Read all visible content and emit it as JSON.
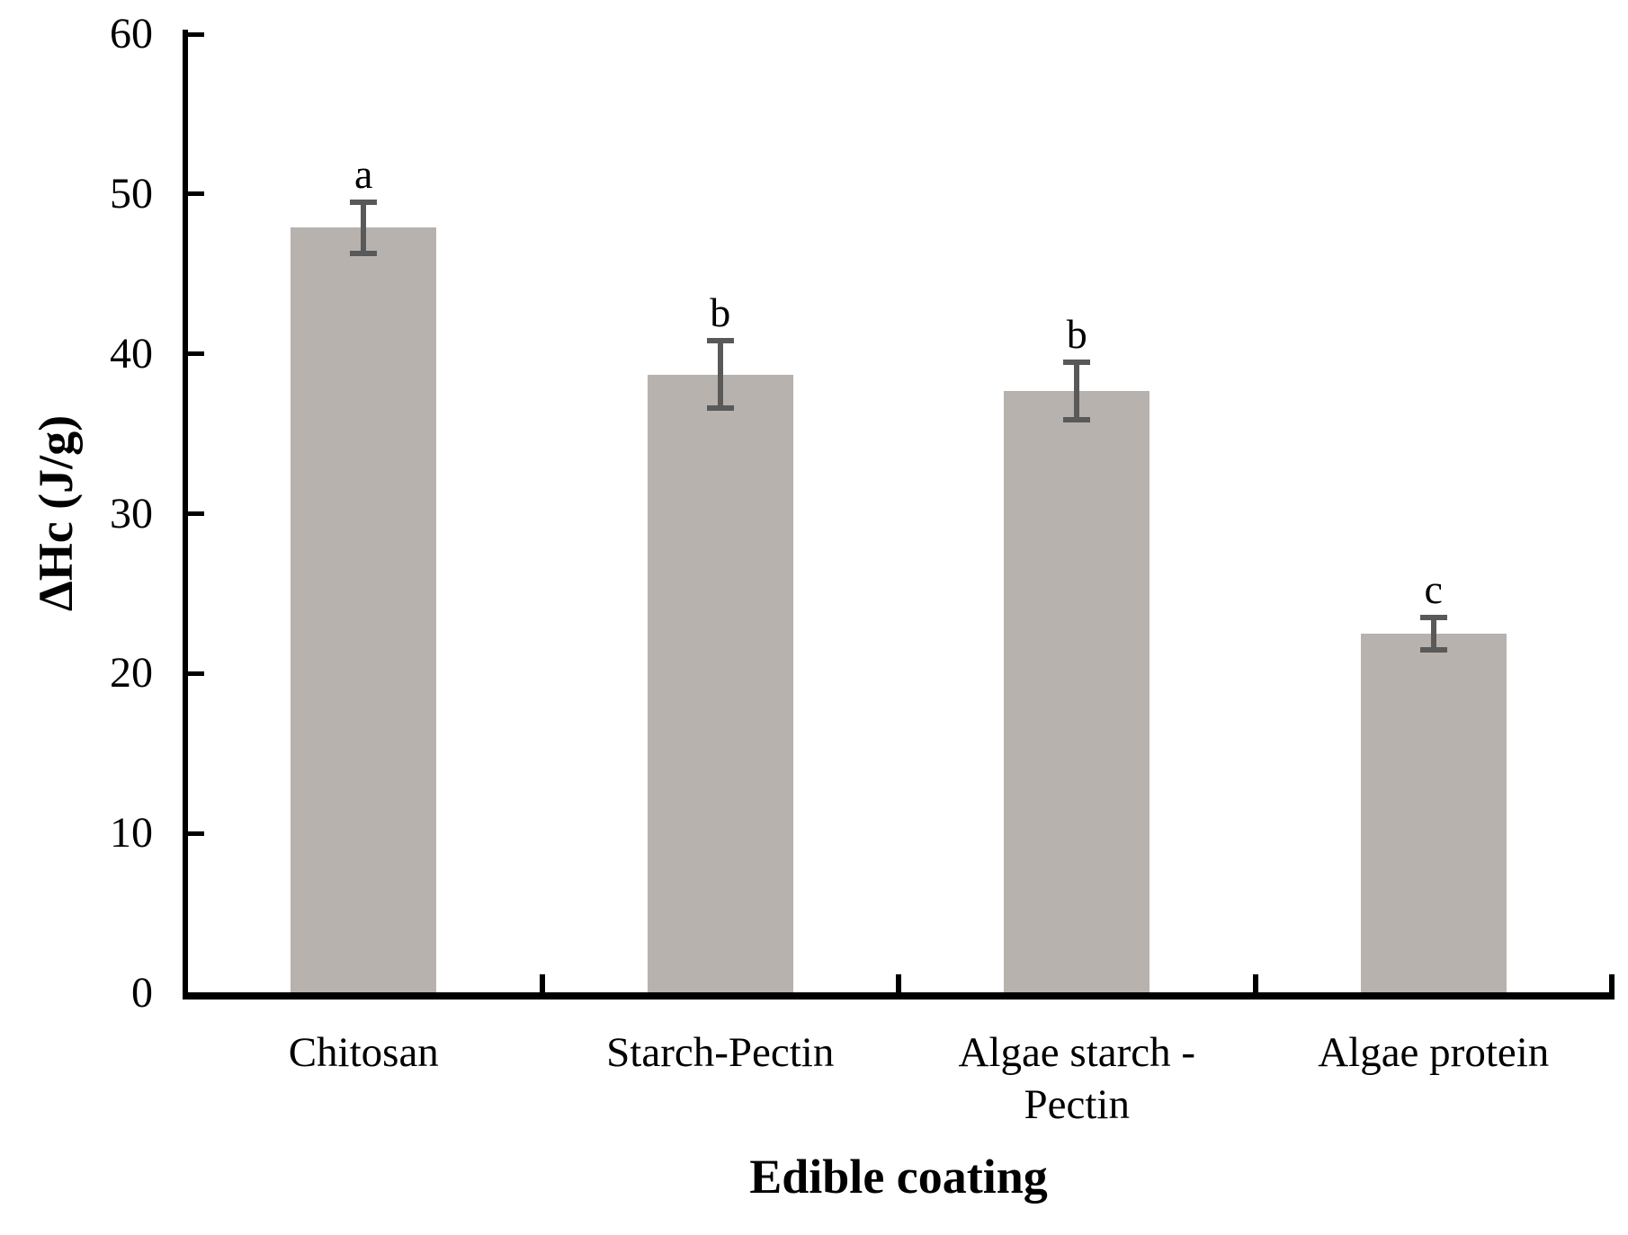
{
  "chart_data": {
    "type": "bar",
    "title": "",
    "xlabel": "Edible coating",
    "ylabel": "ΔHc (J/g)",
    "categories": [
      "Chitosan",
      "Starch-Pectin",
      "Algae starch - Pectin",
      "Algae protein"
    ],
    "category_label_lines": [
      [
        "Chitosan"
      ],
      [
        "Starch-Pectin"
      ],
      [
        "Algae starch -",
        "Pectin"
      ],
      [
        "Algae protein"
      ]
    ],
    "values": [
      47.9,
      38.7,
      37.7,
      22.5
    ],
    "error_bars": [
      1.6,
      2.1,
      1.8,
      1.0
    ],
    "significance_letters": [
      "a",
      "b",
      "b",
      "c"
    ],
    "ylim": [
      0,
      60
    ],
    "yticks": [
      0,
      10,
      20,
      30,
      40,
      50,
      60
    ],
    "grid": false,
    "legend": null,
    "colors": {
      "bar_fill": "#b7b2ae",
      "error_bar": "#595959",
      "axis": "#000000",
      "background": "#ffffff"
    }
  }
}
